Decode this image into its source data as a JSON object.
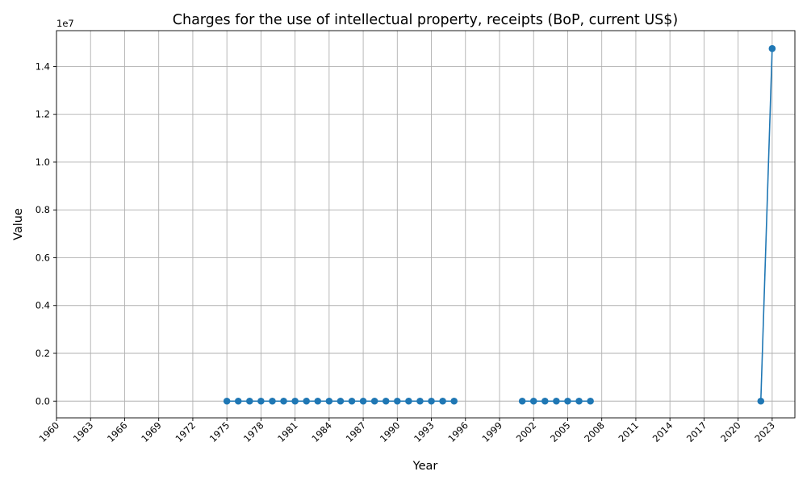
{
  "chart_data": {
    "type": "line",
    "title": "Charges for the use of intellectual property, receipts (BoP, current US$)",
    "xlabel": "Year",
    "ylabel": "Value",
    "y_offset_label": "1e7",
    "xlim": [
      1960,
      2025
    ],
    "ylim": [
      -700000,
      15500000
    ],
    "x_ticks": [
      1960,
      1963,
      1966,
      1969,
      1972,
      1975,
      1978,
      1981,
      1984,
      1987,
      1990,
      1993,
      1996,
      1999,
      2002,
      2005,
      2008,
      2011,
      2014,
      2017,
      2020,
      2023
    ],
    "y_ticks": [
      0,
      2000000,
      4000000,
      6000000,
      8000000,
      10000000,
      12000000,
      14000000
    ],
    "y_tick_labels": [
      "0.0",
      "0.2",
      "0.4",
      "0.6",
      "0.8",
      "1.0",
      "1.2",
      "1.4"
    ],
    "grid": true,
    "color": "#1f77b4",
    "series": [
      {
        "points": [
          [
            1975,
            0
          ],
          [
            1976,
            0
          ],
          [
            1977,
            0
          ],
          [
            1978,
            0
          ],
          [
            1979,
            0
          ],
          [
            1980,
            0
          ],
          [
            1981,
            0
          ],
          [
            1982,
            0
          ],
          [
            1983,
            0
          ],
          [
            1984,
            0
          ],
          [
            1985,
            0
          ],
          [
            1986,
            0
          ],
          [
            1987,
            0
          ],
          [
            1988,
            0
          ],
          [
            1989,
            0
          ],
          [
            1990,
            0
          ],
          [
            1991,
            0
          ],
          [
            1992,
            0
          ],
          [
            1993,
            0
          ],
          [
            1994,
            0
          ],
          [
            1995,
            0
          ],
          null,
          [
            2001,
            0
          ],
          [
            2002,
            0
          ],
          [
            2003,
            0
          ],
          [
            2004,
            0
          ],
          [
            2005,
            0
          ],
          [
            2006,
            0
          ],
          [
            2007,
            0
          ],
          null,
          [
            2022,
            0
          ],
          [
            2023,
            14750000
          ]
        ]
      }
    ]
  }
}
